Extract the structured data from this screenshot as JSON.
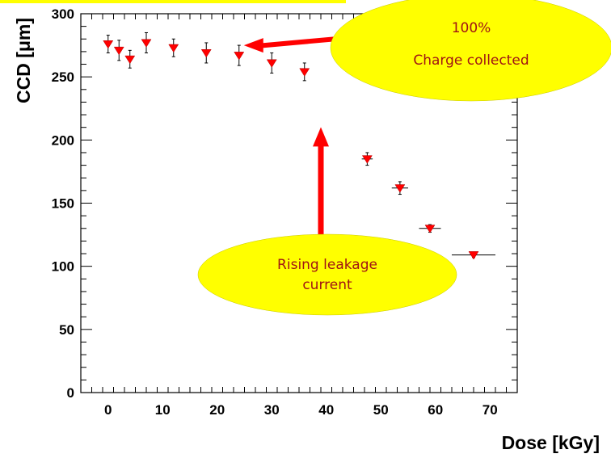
{
  "chart_data": {
    "type": "scatter",
    "title": "",
    "xlabel": "Dose [kGy]",
    "ylabel": "CCD [μm]",
    "xlim": [
      -5,
      75
    ],
    "ylim": [
      0,
      300
    ],
    "xticks": [
      0,
      10,
      20,
      30,
      40,
      50,
      60,
      70
    ],
    "yticks": [
      0,
      50,
      100,
      150,
      200,
      250,
      300
    ],
    "grid": false,
    "marker": "triangle-down",
    "marker_color": "#ff0000",
    "points": [
      {
        "x": 0,
        "y": 276,
        "yerr": 7,
        "xerr": 0
      },
      {
        "x": 2,
        "y": 271,
        "yerr": 8,
        "xerr": 0
      },
      {
        "x": 4,
        "y": 264,
        "yerr": 7,
        "xerr": 0
      },
      {
        "x": 7,
        "y": 277,
        "yerr": 8,
        "xerr": 0
      },
      {
        "x": 12,
        "y": 273,
        "yerr": 7,
        "xerr": 0
      },
      {
        "x": 18,
        "y": 269,
        "yerr": 8,
        "xerr": 0
      },
      {
        "x": 24,
        "y": 267,
        "yerr": 8,
        "xerr": 0
      },
      {
        "x": 30,
        "y": 261,
        "yerr": 8,
        "xerr": 0
      },
      {
        "x": 36,
        "y": 254,
        "yerr": 7,
        "xerr": 0
      },
      {
        "x": 47.5,
        "y": 185,
        "yerr": 5,
        "xerr": 1
      },
      {
        "x": 53.5,
        "y": 162,
        "yerr": 5,
        "xerr": 1.5
      },
      {
        "x": 59,
        "y": 130,
        "yerr": 3,
        "xerr": 2
      },
      {
        "x": 67,
        "y": 109,
        "yerr": 2,
        "xerr": 4
      }
    ],
    "annotations": [
      {
        "text_lines": [
          "100%",
          "Charge collected"
        ],
        "arrow_to": {
          "x": 24,
          "y": 275
        }
      },
      {
        "text_lines": [
          "Rising leakage",
          "current"
        ],
        "arrow_to": {
          "x": 39,
          "y": 200
        }
      }
    ]
  },
  "colors": {
    "callout_fill": "#ffff00",
    "callout_text": "#a01414",
    "arrow": "#ff0000"
  }
}
